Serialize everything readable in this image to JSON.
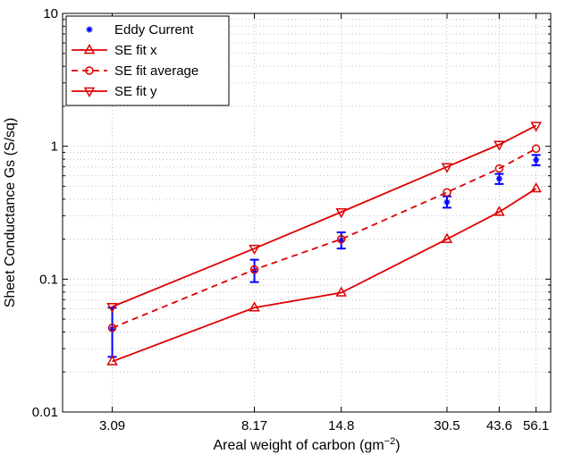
{
  "chart_data": {
    "type": "line",
    "xlabel": "Areal weight of carbon (gm",
    "xlabel_sup": "−2",
    "xlabel_end": ")",
    "ylabel": "Sheet Conductance Gs (S/sq)",
    "x_scale": "log",
    "y_scale": "log",
    "xlim": [
      2.2,
      62
    ],
    "ylim": [
      0.01,
      10
    ],
    "grid": true,
    "legend_position": "top-left",
    "x_ticks": [
      3.09,
      8.17,
      14.8,
      30.5,
      43.6,
      56.1
    ],
    "x_tick_labels": [
      "3.09",
      "8.17",
      "14.8",
      "30.5",
      "43.6",
      "56.1"
    ],
    "y_ticks": [
      0.01,
      0.1,
      1,
      10
    ],
    "y_tick_labels": [
      "0.01",
      "0.1",
      "1",
      "10"
    ],
    "x": [
      3.09,
      8.17,
      14.8,
      30.5,
      43.6,
      56.1
    ],
    "series": [
      {
        "name": "Eddy Current",
        "style": "points-errorbar",
        "color": "#0000ff",
        "values": [
          0.042,
          0.115,
          0.195,
          0.38,
          0.57,
          0.79
        ],
        "err_low": [
          0.026,
          0.095,
          0.17,
          0.345,
          0.52,
          0.72
        ],
        "err_high": [
          0.061,
          0.14,
          0.225,
          0.42,
          0.62,
          0.86
        ]
      },
      {
        "name": "SE fit x",
        "style": "solid",
        "marker": "triangle-up",
        "color": "#dd0000",
        "values": [
          0.024,
          0.061,
          0.079,
          0.2,
          0.32,
          0.48
        ]
      },
      {
        "name": "SE fit average",
        "style": "dashed",
        "marker": "circle",
        "color": "#dd0000",
        "values": [
          0.043,
          0.118,
          0.2,
          0.45,
          0.68,
          0.96
        ]
      },
      {
        "name": "SE fit y",
        "style": "solid",
        "marker": "triangle-down",
        "color": "#dd0000",
        "values": [
          0.062,
          0.17,
          0.32,
          0.7,
          1.03,
          1.43
        ]
      }
    ]
  }
}
